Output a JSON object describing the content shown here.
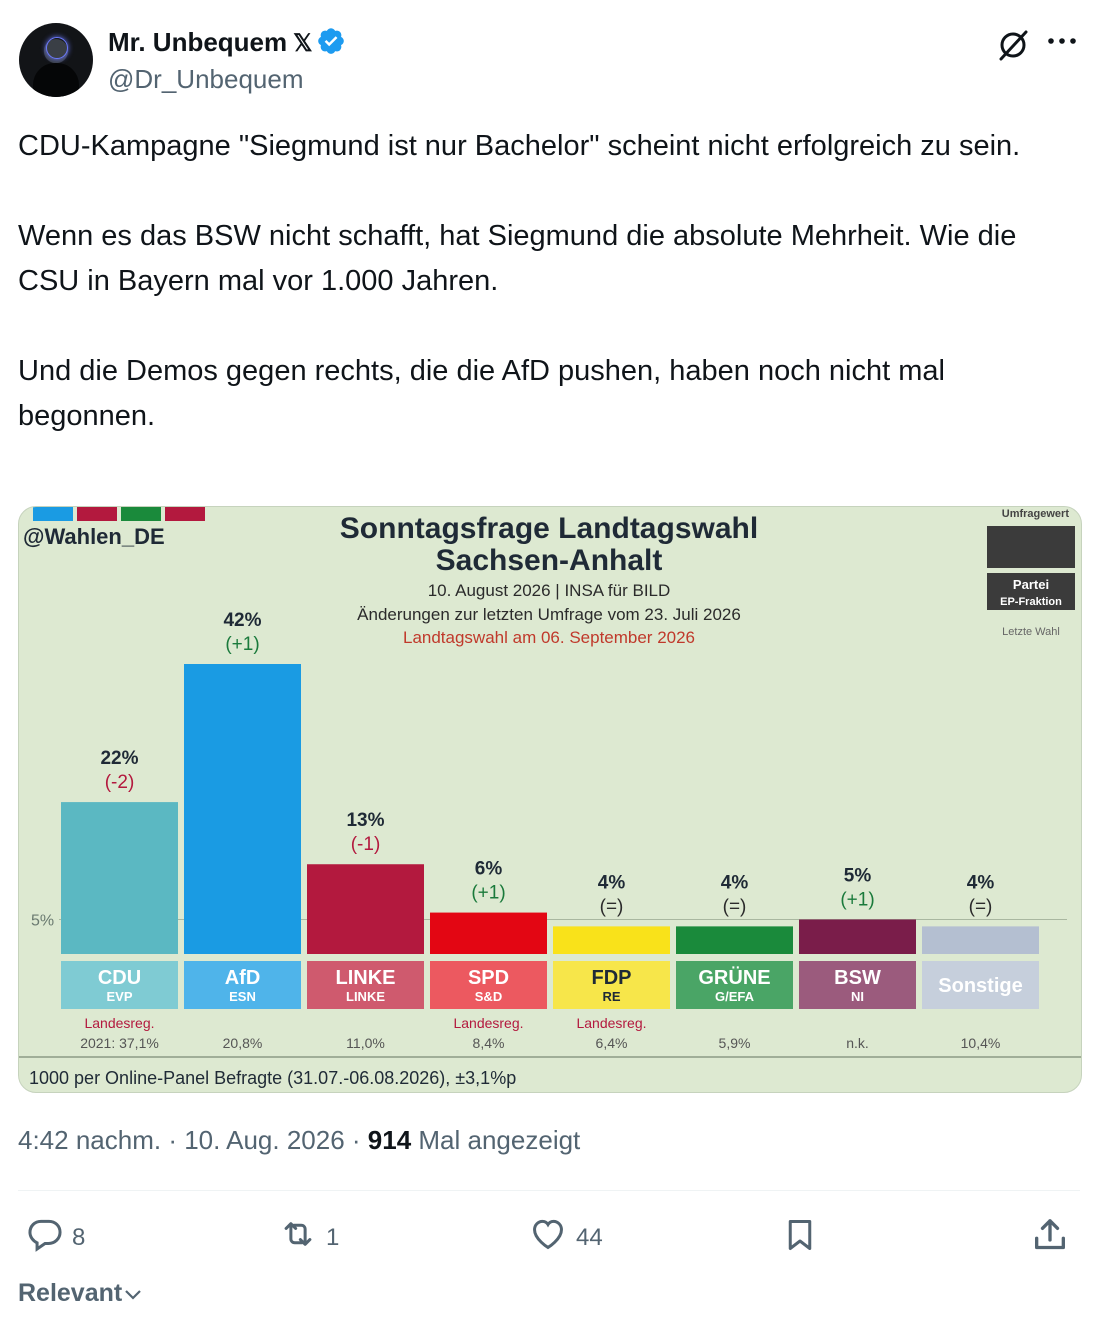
{
  "author": {
    "name": "Mr. Unbequem",
    "x_badge": "𝕏",
    "handle": "@Dr_Unbequem"
  },
  "tweet": {
    "paragraphs": [
      "CDU-Kampagne \"Siegmund ist nur Bachelor\" scheint nicht erfolgreich zu sein.",
      "Wenn es das BSW nicht schafft, hat Siegmund die absolute Mehrheit. Wie die CSU in Bayern mal vor 1.000 Jahren.",
      "Und die Demos gegen rechts, die die AfD pushen, haben noch nicht mal begonnen."
    ]
  },
  "chart_data": {
    "type": "bar",
    "source_handle": "@Wahlen_DE",
    "title_line1": "Sonntagsfrage Landtagswahl",
    "title_line2": "Sachsen-Anhalt",
    "date_line": "10. August 2026 | INSA für BILD",
    "change_line": "Änderungen zur letzten Umfrage vom 23. Juli 2026",
    "election_line": "Landtagswahl am 06. September 2026",
    "legend": {
      "title": "Umfragewert",
      "party": "Partei",
      "faction": "EP-Fraktion",
      "last": "Letzte Wahl"
    },
    "threshold_label": "5%",
    "threshold": 5,
    "ylim": [
      0,
      42
    ],
    "categories": [
      "CDU",
      "AfD",
      "LINKE",
      "SPD",
      "FDP",
      "GRÜNE",
      "BSW",
      "Sonstige"
    ],
    "ep_factions": [
      "EVP",
      "ESN",
      "LINKE",
      "S&D",
      "RE",
      "G/EFA",
      "NI",
      ""
    ],
    "values": [
      22,
      42,
      13,
      6,
      4,
      4,
      5,
      4
    ],
    "value_labels": [
      "22%",
      "42%",
      "13%",
      "6%",
      "4%",
      "4%",
      "5%",
      "4%"
    ],
    "changes": [
      "(-2)",
      "(+1)",
      "(-1)",
      "(+1)",
      "(=)",
      "(=)",
      "(+1)",
      "(=)"
    ],
    "notes": [
      "Landesreg.",
      "",
      "",
      "Landesreg.",
      "Landesreg.",
      "",
      "",
      ""
    ],
    "last_election": [
      "2021: 37,1%",
      "20,8%",
      "11,0%",
      "8,4%",
      "6,4%",
      "5,9%",
      "n.k.",
      "10,4%"
    ],
    "colors": [
      "#5bb8c2",
      "#1a9be3",
      "#b3193e",
      "#e30613",
      "#f9e21a",
      "#1a8a3b",
      "#7a1d4a",
      "#b4bfd1"
    ],
    "label_colors": [
      "#7fcbd3",
      "#4fb4ea",
      "#cf5a6e",
      "#ec5960",
      "#f7e64a",
      "#4aa566",
      "#9b5b7d",
      "#c6cfdc"
    ],
    "footer": "1000 per Online-Panel Befragte (31.07.-06.08.2026), ±3,1%p"
  },
  "meta": {
    "time": "4:42 nachm. · 10. Aug. 2026 · ",
    "views": "914",
    "views_suffix": " Mal angezeigt"
  },
  "actions": {
    "replies": "8",
    "reposts": "1",
    "likes": "44"
  },
  "sort_label": "Relevant"
}
